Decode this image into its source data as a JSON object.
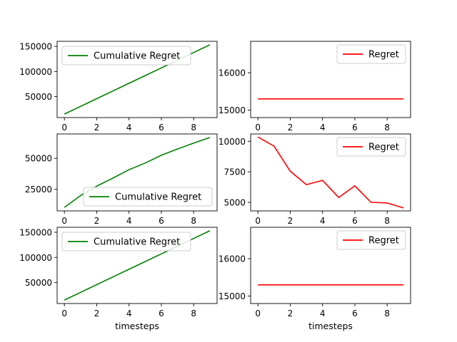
{
  "chart_data": [
    {
      "type": "line",
      "panel": "top-left",
      "x": [
        0,
        1,
        2,
        3,
        4,
        5,
        6,
        7,
        8,
        9
      ],
      "series": [
        {
          "name": "Cumulative Regret",
          "color": "#008000",
          "values": [
            15300,
            30600,
            45900,
            61200,
            76500,
            91800,
            107100,
            122400,
            137700,
            153000
          ]
        }
      ],
      "xticks": [
        "0",
        "2",
        "4",
        "6",
        "8"
      ],
      "yticks": [
        {
          "v": 50000,
          "label": "50000"
        },
        {
          "v": 100000,
          "label": "100000"
        },
        {
          "v": 150000,
          "label": "150000"
        }
      ],
      "xlim": [
        -0.45,
        9.45
      ],
      "ylim": [
        8415,
        159885
      ],
      "legend": "upper-left",
      "xlabel": ""
    },
    {
      "type": "line",
      "panel": "top-right",
      "x": [
        0,
        1,
        2,
        3,
        4,
        5,
        6,
        7,
        8,
        9
      ],
      "series": [
        {
          "name": "Regret",
          "color": "#ff0000",
          "values": [
            15300,
            15300,
            15300,
            15300,
            15300,
            15300,
            15300,
            15300,
            15300,
            15300
          ]
        }
      ],
      "xticks": [
        "0",
        "2",
        "4",
        "6",
        "8"
      ],
      "yticks": [
        {
          "v": 15000,
          "label": "15000"
        },
        {
          "v": 16000,
          "label": "16000"
        }
      ],
      "xlim": [
        -0.45,
        9.45
      ],
      "ylim": [
        14800,
        16840
      ],
      "legend": "upper-right",
      "xlabel": ""
    },
    {
      "type": "line",
      "panel": "middle-left",
      "x": [
        0,
        1,
        2,
        3,
        4,
        5,
        6,
        7,
        8,
        9
      ],
      "series": [
        {
          "name": "Cumulative Regret",
          "color": "#008000",
          "values": [
            10300,
            19900,
            27500,
            34000,
            40800,
            46200,
            52500,
            57500,
            62300,
            66800
          ]
        }
      ],
      "xticks": [
        "0",
        "2",
        "4",
        "6",
        "8"
      ],
      "yticks": [
        {
          "v": 25000,
          "label": "25000"
        },
        {
          "v": 50000,
          "label": "50000"
        }
      ],
      "xlim": [
        -0.45,
        9.45
      ],
      "ylim": [
        7500,
        69700
      ],
      "legend": "lower-right",
      "xlabel": ""
    },
    {
      "type": "line",
      "panel": "middle-right",
      "x": [
        0,
        1,
        2,
        3,
        4,
        5,
        6,
        7,
        8,
        9
      ],
      "series": [
        {
          "name": "Regret",
          "color": "#ff0000",
          "values": [
            10350,
            9600,
            7550,
            6450,
            6800,
            5400,
            6350,
            5000,
            4950,
            4550
          ]
        }
      ],
      "xticks": [
        "0",
        "2",
        "4",
        "6",
        "8"
      ],
      "yticks": [
        {
          "v": 5000,
          "label": "5000"
        },
        {
          "v": 7500,
          "label": "7500"
        },
        {
          "v": 10000,
          "label": "10000"
        }
      ],
      "xlim": [
        -0.45,
        9.45
      ],
      "ylim": [
        4300,
        10600
      ],
      "legend": "upper-right",
      "xlabel": ""
    },
    {
      "type": "line",
      "panel": "bottom-left",
      "x": [
        0,
        1,
        2,
        3,
        4,
        5,
        6,
        7,
        8,
        9
      ],
      "series": [
        {
          "name": "Cumulative Regret",
          "color": "#008000",
          "values": [
            15300,
            30600,
            45900,
            61200,
            76500,
            91800,
            107100,
            122400,
            137700,
            153000
          ]
        }
      ],
      "xticks": [
        "0",
        "2",
        "4",
        "6",
        "8"
      ],
      "yticks": [
        {
          "v": 50000,
          "label": "50000"
        },
        {
          "v": 100000,
          "label": "100000"
        },
        {
          "v": 150000,
          "label": "150000"
        }
      ],
      "xlim": [
        -0.45,
        9.45
      ],
      "ylim": [
        8415,
        159885
      ],
      "legend": "upper-left",
      "xlabel": "timesteps"
    },
    {
      "type": "line",
      "panel": "bottom-right",
      "x": [
        0,
        1,
        2,
        3,
        4,
        5,
        6,
        7,
        8,
        9
      ],
      "series": [
        {
          "name": "Regret",
          "color": "#ff0000",
          "values": [
            15300,
            15300,
            15300,
            15300,
            15300,
            15300,
            15300,
            15300,
            15300,
            15300
          ]
        }
      ],
      "xticks": [
        "0",
        "2",
        "4",
        "6",
        "8"
      ],
      "yticks": [
        {
          "v": 15000,
          "label": "15000"
        },
        {
          "v": 16000,
          "label": "16000"
        }
      ],
      "xlim": [
        -0.45,
        9.45
      ],
      "ylim": [
        14800,
        16840
      ],
      "legend": "upper-right",
      "xlabel": "timesteps"
    }
  ]
}
